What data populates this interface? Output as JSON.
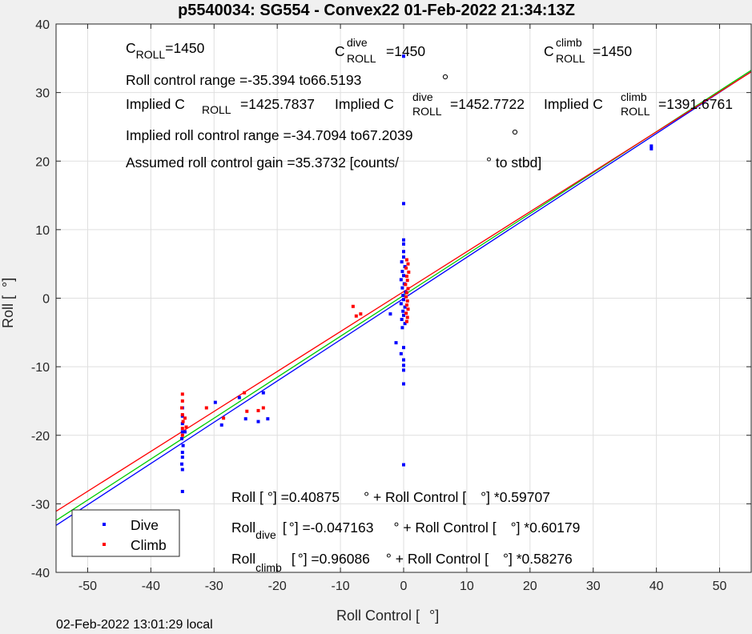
{
  "chart_data": {
    "type": "scatter",
    "title": "p5540034: SG554 - Convex22 01-Feb-2022 21:34:13Z",
    "xlabel": "Roll Control [",
    "xlabel_unit": "°]",
    "ylabel": "Roll [",
    "ylabel_unit": "°]",
    "xlim": [
      -55,
      55
    ],
    "ylim": [
      -40,
      40
    ],
    "xticks": [
      "-50",
      "-40",
      "-30",
      "-20",
      "-10",
      "0",
      "10",
      "20",
      "30",
      "40",
      "50"
    ],
    "yticks": [
      "40",
      "30",
      "20",
      "10",
      "0",
      "-10",
      "-20",
      "-30",
      "-40"
    ],
    "grid": true,
    "legend_position": "bottom-left",
    "series": [
      {
        "name": "Dive",
        "color": "#0000ff",
        "points": [
          [
            0.0,
            35.3
          ],
          [
            39.2,
            22.2
          ],
          [
            39.2,
            21.8
          ],
          [
            0.0,
            13.8
          ],
          [
            0.0,
            8.5
          ],
          [
            0.0,
            7.9
          ],
          [
            0.0,
            6.8
          ],
          [
            0.0,
            6.0
          ],
          [
            -0.3,
            5.3
          ],
          [
            0.2,
            4.6
          ],
          [
            -0.2,
            3.9
          ],
          [
            0.0,
            3.3
          ],
          [
            -0.4,
            2.7
          ],
          [
            0.1,
            2.1
          ],
          [
            -0.2,
            1.5
          ],
          [
            0.3,
            0.9
          ],
          [
            -0.1,
            0.4
          ],
          [
            0.0,
            -0.2
          ],
          [
            -0.4,
            -0.8
          ],
          [
            0.2,
            -1.3
          ],
          [
            -0.1,
            -1.9
          ],
          [
            0.0,
            -2.5
          ],
          [
            -0.3,
            -3.1
          ],
          [
            0.2,
            -3.7
          ],
          [
            -0.2,
            -4.3
          ],
          [
            -1.2,
            -6.5
          ],
          [
            0.0,
            -7.2
          ],
          [
            -0.4,
            -8.1
          ],
          [
            0.0,
            -9.0
          ],
          [
            0.0,
            -9.8
          ],
          [
            0.0,
            -10.5
          ],
          [
            0.0,
            -12.5
          ],
          [
            0.0,
            -24.3
          ],
          [
            -35.0,
            -16.0
          ],
          [
            -35.0,
            -17.2
          ],
          [
            -35.0,
            -18.3
          ],
          [
            -35.0,
            -19.5
          ],
          [
            -35.1,
            -20.5
          ],
          [
            -34.9,
            -21.5
          ],
          [
            -35.0,
            -22.5
          ],
          [
            -35.0,
            -23.2
          ],
          [
            -35.1,
            -24.2
          ],
          [
            -35.0,
            -25.0
          ],
          [
            -35.0,
            -28.2
          ],
          [
            -34.6,
            -19.5
          ],
          [
            -29.8,
            -15.2
          ],
          [
            -28.8,
            -18.5
          ],
          [
            -26.0,
            -14.5
          ],
          [
            -25.0,
            -17.6
          ],
          [
            -23.0,
            -18.0
          ],
          [
            -22.2,
            -13.8
          ],
          [
            -21.5,
            -17.6
          ],
          [
            -2.1,
            -2.3
          ]
        ]
      },
      {
        "name": "Climb",
        "color": "#ff0000",
        "points": [
          [
            0.5,
            5.6
          ],
          [
            0.7,
            5.0
          ],
          [
            0.4,
            4.4
          ],
          [
            0.8,
            3.8
          ],
          [
            0.5,
            3.2
          ],
          [
            0.6,
            2.6
          ],
          [
            0.3,
            2.0
          ],
          [
            0.7,
            1.4
          ],
          [
            0.5,
            0.8
          ],
          [
            0.4,
            0.2
          ],
          [
            0.6,
            -0.4
          ],
          [
            0.5,
            -1.0
          ],
          [
            0.7,
            -1.6
          ],
          [
            0.4,
            -2.2
          ],
          [
            0.6,
            -2.8
          ],
          [
            0.5,
            -3.4
          ],
          [
            -8.0,
            -1.2
          ],
          [
            -7.5,
            -2.6
          ],
          [
            -6.8,
            -2.3
          ],
          [
            -35.0,
            -14.0
          ],
          [
            -35.0,
            -15.0
          ],
          [
            -35.1,
            -16.0
          ],
          [
            -35.0,
            -17.0
          ],
          [
            -34.9,
            -18.0
          ],
          [
            -35.0,
            -19.0
          ],
          [
            -35.0,
            -20.0
          ],
          [
            -34.6,
            -17.5
          ],
          [
            -34.4,
            -18.8
          ],
          [
            -31.2,
            -16.0
          ],
          [
            -28.5,
            -17.5
          ],
          [
            -25.2,
            -13.8
          ],
          [
            -24.8,
            -16.5
          ],
          [
            -23.0,
            -16.4
          ],
          [
            -22.2,
            -16.0
          ]
        ]
      }
    ],
    "fits": [
      {
        "label": "Roll",
        "color": "#0000ff",
        "intercept": -0.047163,
        "slope": 0.60179
      },
      {
        "label": "Roll",
        "color": "#00cc00",
        "intercept": 0.40875,
        "slope": 0.59707
      },
      {
        "label": "Roll",
        "color": "#ff0000",
        "intercept": 0.96086,
        "slope": 0.58276
      }
    ],
    "annotations": {
      "c": "C",
      "roll_sub": "ROLL",
      "dive_sup": "dive",
      "climb_sup": "climb",
      "croll_value": "=1450",
      "croll_dive_value": "=1450",
      "croll_climb_value": "=1450",
      "range_line": "Roll control range =-35.394 to66.5193",
      "implied_label": "Implied C",
      "implied_croll": "=1425.7837",
      "implied_dive": "=1452.7722",
      "implied_climb": "=1391.6761",
      "implied_range": "Implied roll control range =-34.7094 to67.2039",
      "gain_line": "Assumed roll control gain =35.3732 [counts/",
      "gain_unit": "° to stbd]",
      "eq_all_a": "Roll [",
      "eq_all_b": "°] =0.40875",
      "eq_all_c": "° + Roll Control [",
      "eq_all_d": "°] *0.59707",
      "eq_dive_a": "Roll",
      "eq_dive_sub": "dive",
      "eq_dive_b": "[",
      "eq_dive_c": "°] =-0.047163",
      "eq_dive_d": "° + Roll Control [",
      "eq_dive_e": "°] *0.60179",
      "eq_climb_a": "Roll",
      "eq_climb_sub": "climb",
      "eq_climb_b": "[",
      "eq_climb_c": "°] =0.96086",
      "eq_climb_d": "° + Roll Control [",
      "eq_climb_e": "°] *0.58276"
    }
  },
  "footer": "02-Feb-2022 13:01:29 local"
}
